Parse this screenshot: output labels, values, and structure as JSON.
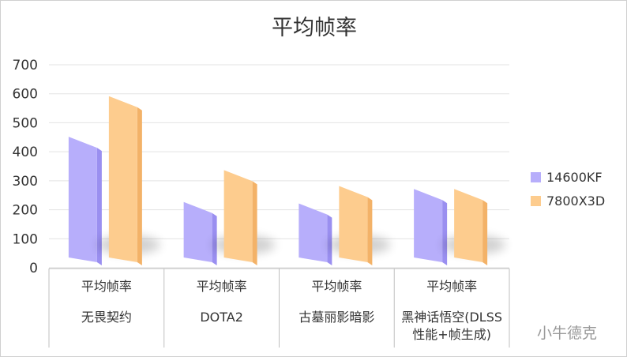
{
  "chart_data": {
    "type": "bar",
    "title": "平均帧率",
    "xlabel": "",
    "ylabel": "",
    "ylim": [
      0,
      700
    ],
    "yticks": [
      "0",
      "100",
      "200",
      "300",
      "400",
      "500",
      "600",
      "700"
    ],
    "grid": true,
    "legend_position": "right",
    "categories": [
      {
        "line1": "平均帧率",
        "line2": "无畏契约",
        "line3": ""
      },
      {
        "line1": "平均帧率",
        "line2": "DOTA2",
        "line3": ""
      },
      {
        "line1": "平均帧率",
        "line2": "古墓丽影暗影",
        "line3": ""
      },
      {
        "line1": "平均帧率",
        "line2": "黑神话悟空(DLSS",
        "line3": "性能+帧生成)"
      }
    ],
    "series": [
      {
        "name": "14600KF",
        "color": "#b7aefb",
        "values": [
          430,
          205,
          200,
          250
        ]
      },
      {
        "name": "7800X3D",
        "color": "#fdcc8e",
        "values": [
          570,
          315,
          260,
          250
        ]
      }
    ]
  },
  "watermark": "小牛德克"
}
